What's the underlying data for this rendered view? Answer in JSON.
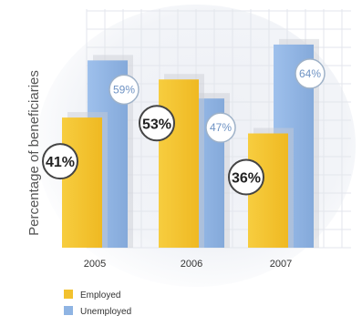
{
  "chart_data": {
    "type": "bar",
    "title": "",
    "xlabel": "",
    "ylabel": "Percentage of beneficiaries",
    "categories": [
      "2005",
      "2006",
      "2007"
    ],
    "series": [
      {
        "name": "Employed",
        "values": [
          41,
          53,
          36
        ],
        "labels": [
          "41%",
          "53%",
          "36%"
        ]
      },
      {
        "name": "Unemployed",
        "values": [
          59,
          47,
          64
        ],
        "labels": [
          "59%",
          "47%",
          "64%"
        ]
      }
    ],
    "ylim": [
      0,
      70
    ],
    "grid": true,
    "legend": "bottom-left",
    "colors": {
      "employed": "#f2c12e",
      "unemployed": "#8fb4e3",
      "background_grid": "#e6e9ef"
    }
  }
}
